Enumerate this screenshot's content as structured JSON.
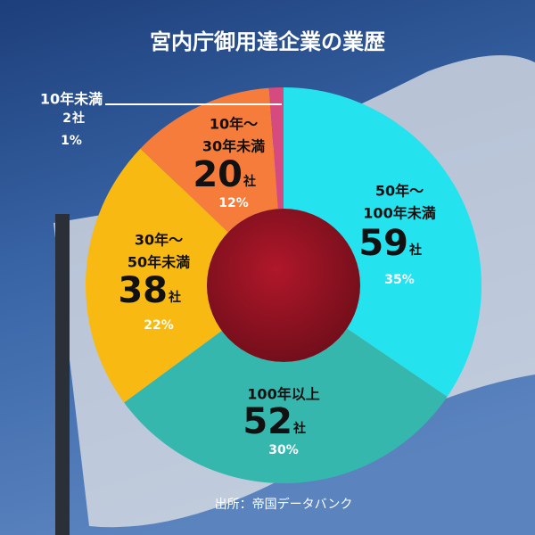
{
  "chart_data": {
    "type": "donut",
    "title": "宮内庁御用達企業の業歴",
    "categories": [
      [
        "50年〜",
        "100年未満"
      ],
      [
        "100年以上"
      ],
      [
        "30年〜",
        "50年未満"
      ],
      [
        "10年〜",
        "30年未満"
      ],
      [
        "10年未満"
      ]
    ],
    "values": [
      59,
      52,
      38,
      20,
      2
    ],
    "unit": "社",
    "percents": [
      35,
      30,
      22,
      12,
      1
    ],
    "percent_labels": [
      "35%",
      "30%",
      "22%",
      "12%",
      "1%"
    ],
    "colors": [
      "#25e2ef",
      "#36b7ae",
      "#f8b912",
      "#f67c3c",
      "#d64b7f"
    ],
    "source": "出所：帝国データバンク"
  }
}
